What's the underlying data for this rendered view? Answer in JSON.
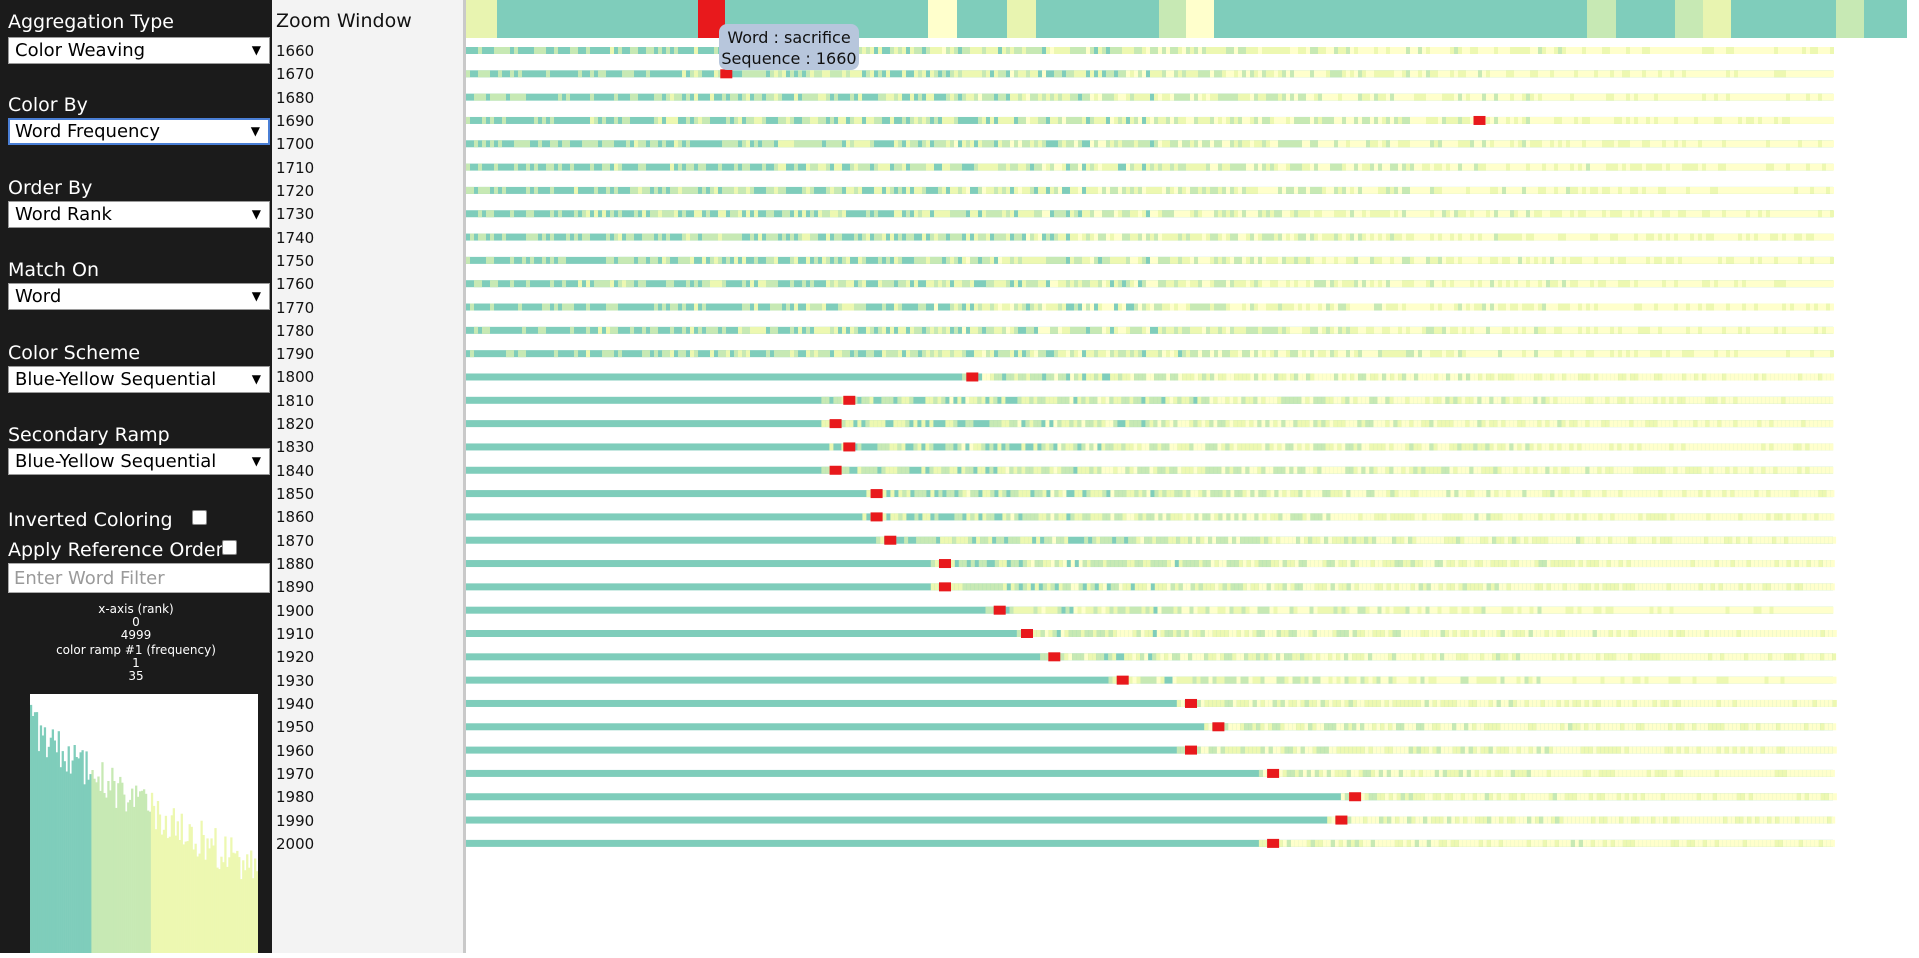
{
  "controls": {
    "aggregation_type": {
      "label": "Aggregation Type",
      "value": "Color Weaving"
    },
    "color_by": {
      "label": "Color By",
      "value": "Word Frequency"
    },
    "order_by": {
      "label": "Order By",
      "value": "Word Rank"
    },
    "match_on": {
      "label": "Match On",
      "value": "Word"
    },
    "color_scheme": {
      "label": "Color Scheme",
      "value": "Blue-Yellow Sequential"
    },
    "secondary_ramp": {
      "label": "Secondary Ramp",
      "value": "Blue-Yellow Sequential"
    },
    "inverted_coloring": {
      "label": "Inverted Coloring",
      "checked": false
    },
    "apply_reference_order": {
      "label": "Apply Reference Order",
      "checked": false
    },
    "word_filter": {
      "placeholder": "Enter Word Filter",
      "value": ""
    }
  },
  "legend": {
    "x_axis_title": "x-axis (rank)",
    "x_min": "0",
    "x_max": "4999",
    "ramp_title": "color ramp #1 (frequency)",
    "ramp_min": "1",
    "ramp_max": "35"
  },
  "zoom_window": {
    "title": "Zoom Window"
  },
  "years": [
    "1660",
    "1670",
    "1680",
    "1690",
    "1700",
    "1710",
    "1720",
    "1730",
    "1740",
    "1750",
    "1760",
    "1770",
    "1780",
    "1790",
    "1800",
    "1810",
    "1820",
    "1830",
    "1840",
    "1850",
    "1860",
    "1870",
    "1880",
    "1890",
    "1900",
    "1910",
    "1920",
    "1930",
    "1940",
    "1950",
    "1960",
    "1970",
    "1980",
    "1990",
    "2000"
  ],
  "highlight": {
    "word": "sacrifice",
    "color": "#e8191c",
    "rank_fraction_by_year": {
      "1670": 0.186,
      "1690": 0.737,
      "1800": 0.366,
      "1810": 0.276,
      "1820": 0.266,
      "1830": 0.276,
      "1840": 0.266,
      "1850": 0.296,
      "1860": 0.296,
      "1870": 0.306,
      "1880": 0.346,
      "1890": 0.346,
      "1900": 0.386,
      "1910": 0.406,
      "1920": 0.426,
      "1930": 0.476,
      "1940": 0.526,
      "1950": 0.546,
      "1960": 0.526,
      "1970": 0.586,
      "1980": 0.646,
      "1990": 0.636,
      "2000": 0.586
    }
  },
  "tooltip": {
    "line1": "Word : sacrifice",
    "line2": "Sequence : 1660"
  },
  "colors": {
    "ramp_low": "#7fcdbb",
    "ramp_mid": "#c7e9b4",
    "ramp_high": "#edf8b1",
    "ramp_top": "#ffffcc",
    "sidebar_bg": "#1b1b1b"
  }
}
